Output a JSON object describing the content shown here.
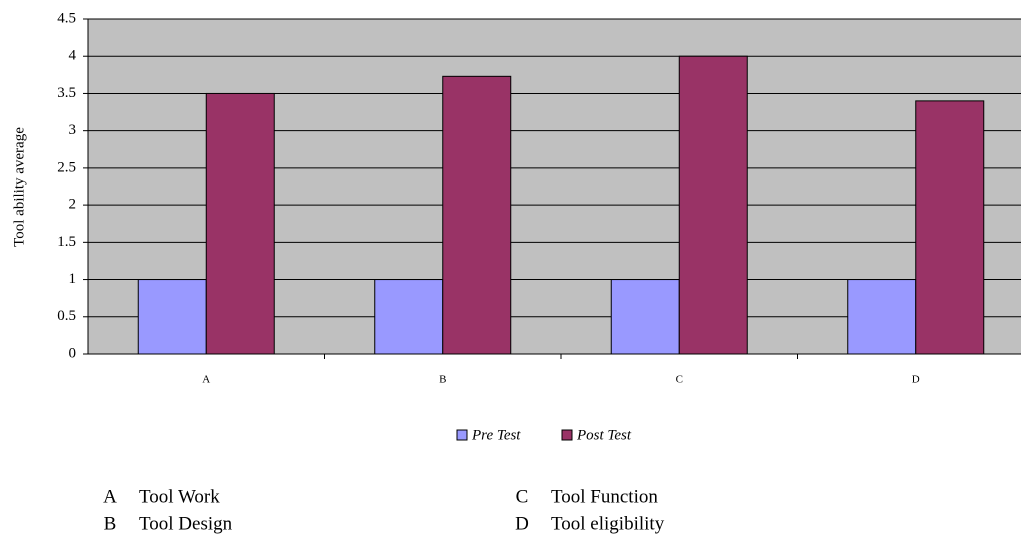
{
  "chart_data": {
    "type": "bar",
    "y_label": "Tool ability average",
    "categories": [
      "A",
      "B",
      "C",
      "D"
    ],
    "series": [
      {
        "name": "Pre Test",
        "color": "#9999ff",
        "values": [
          1,
          1,
          1,
          1
        ]
      },
      {
        "name": "Post Test",
        "color": "#993366",
        "values": [
          3.5,
          3.73,
          4,
          3.4
        ]
      }
    ],
    "ylim": [
      0,
      4.5
    ],
    "yticks": [
      0,
      0.5,
      1,
      1.5,
      2,
      2.5,
      3,
      3.5,
      4,
      4.5
    ],
    "grid": true,
    "legend": "bottom",
    "key": [
      {
        "letter": "A",
        "label": "Tool Work"
      },
      {
        "letter": "B",
        "label": "Tool Design"
      },
      {
        "letter": "C",
        "label": "Tool Function"
      },
      {
        "letter": "D",
        "label": "Tool eligibility"
      }
    ]
  }
}
